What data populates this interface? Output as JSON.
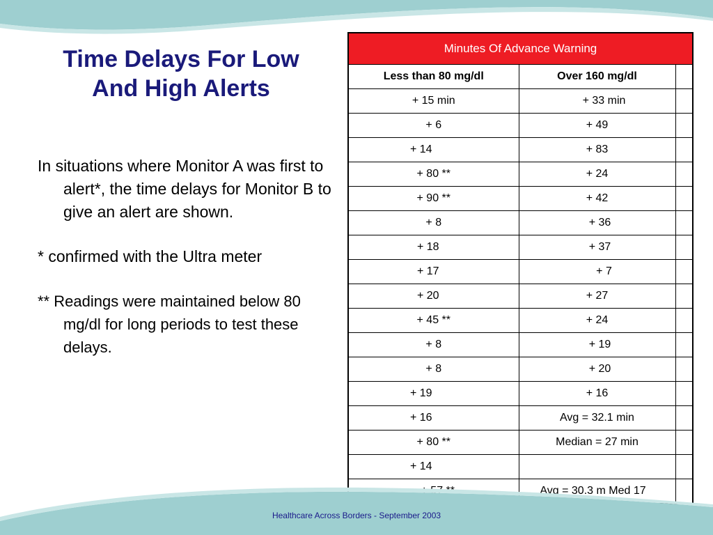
{
  "slide": {
    "title_line1": "Time Delays For Low",
    "title_line2": "And High Alerts",
    "paragraphs": [
      "In situations where Monitor A was first to alert*, the time delays for Monitor B to give an alert are shown.",
      "* confirmed with the Ultra meter",
      "** Readings were maintained below 80 mg/dl for long periods to test these delays."
    ],
    "footer": "Healthcare Across Borders  -  September 2003"
  },
  "table": {
    "header": "Minutes Of Advance Warning",
    "columns": [
      "Less than 80 mg/dl",
      "Over 160 mg/dl"
    ],
    "rows": [
      [
        "+ 15 min",
        "+ 33 min"
      ],
      [
        "+ 6",
        "+ 49"
      ],
      [
        "+ 14",
        "+ 83"
      ],
      [
        "+ 80 **",
        "+ 24"
      ],
      [
        "+ 90 **",
        "+ 42"
      ],
      [
        "+ 8",
        "+ 36"
      ],
      [
        "+ 18",
        "+ 37"
      ],
      [
        "+ 17",
        "+ 7"
      ],
      [
        "+ 20",
        "+ 27"
      ],
      [
        "+ 45 **",
        "+ 24"
      ],
      [
        "+ 8",
        "+ 19"
      ],
      [
        "+ 8",
        "+ 20"
      ],
      [
        "+ 19",
        "+ 16"
      ],
      [
        "+ 16",
        "Avg = 32.1 min"
      ],
      [
        "+ 80 **",
        "Median = 27 min"
      ],
      [
        "+ 14",
        ""
      ],
      [
        "+ 57 **",
        "Avg = 30.3 m Med 17"
      ]
    ]
  },
  "colors": {
    "header_bg": "#ee1c24",
    "title": "#1a1a7a",
    "wave": "#9ecfd0"
  }
}
